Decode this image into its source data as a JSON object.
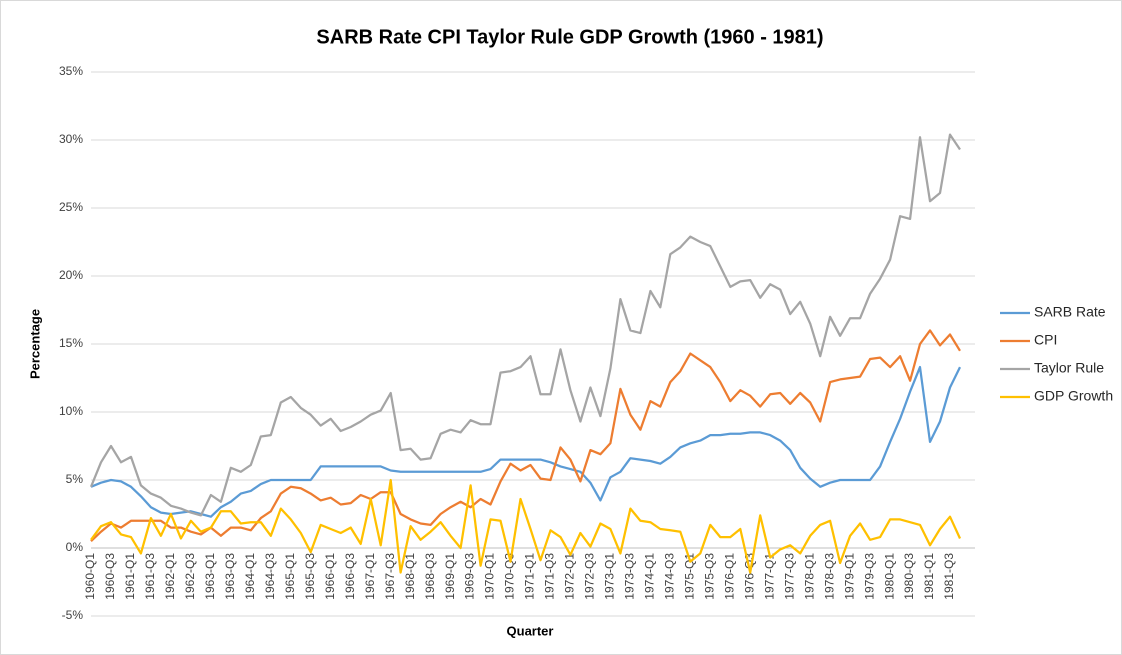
{
  "chart_data": {
    "type": "line",
    "title": "SARB Rate CPI Taylor Rule GDP Growth (1960 - 1981)",
    "x_label": "Quarter",
    "y_label": "Percentage",
    "categories": [
      "1960-Q1",
      null,
      "1960-Q3",
      null,
      "1961-Q1",
      null,
      "1961-Q3",
      null,
      "1962-Q1",
      null,
      "1962-Q3",
      null,
      "1963-Q1",
      null,
      "1963-Q3",
      null,
      "1964-Q1",
      null,
      "1964-Q3",
      null,
      "1965-Q1",
      null,
      "1965-Q3",
      null,
      "1966-Q1",
      null,
      "1966-Q3",
      null,
      "1967-Q1",
      null,
      "1967-Q3",
      null,
      "1968-Q1",
      null,
      "1968-Q3",
      null,
      "1969-Q1",
      null,
      "1969-Q3",
      null,
      "1970-Q1",
      null,
      "1970-Q3",
      null,
      "1971-Q1",
      null,
      "1971-Q3",
      null,
      "1972-Q1",
      null,
      "1972-Q3",
      null,
      "1973-Q1",
      null,
      "1973-Q3",
      null,
      "1974-Q1",
      null,
      "1974-Q3",
      null,
      "1975-Q1",
      null,
      "1975-Q3",
      null,
      "1976-Q1",
      null,
      "1976-Q3",
      null,
      "1977-Q1",
      null,
      "1977-Q3",
      null,
      "1978-Q1",
      null,
      "1978-Q3",
      null,
      "1979-Q1",
      null,
      "1979-Q3",
      null,
      "1980-Q1",
      null,
      "1980-Q3",
      null,
      "1981-Q1",
      null,
      "1981-Q3",
      null
    ],
    "series": [
      {
        "name": "SARB Rate",
        "color": "#5b9bd5",
        "values": [
          4.5,
          4.8,
          5.0,
          4.9,
          4.5,
          3.8,
          3.0,
          2.6,
          2.5,
          2.6,
          2.7,
          2.5,
          2.3,
          3.0,
          3.4,
          4.0,
          4.2,
          4.7,
          5.0,
          5.0,
          5.0,
          5.0,
          5.0,
          6.0,
          6.0,
          6.0,
          6.0,
          6.0,
          6.0,
          6.0,
          5.7,
          5.6,
          5.6,
          5.6,
          5.6,
          5.6,
          5.6,
          5.6,
          5.6,
          5.6,
          5.8,
          6.5,
          6.5,
          6.5,
          6.5,
          6.5,
          6.3,
          6.0,
          5.8,
          5.6,
          4.8,
          3.5,
          5.2,
          5.6,
          6.6,
          6.5,
          6.4,
          6.2,
          6.7,
          7.4,
          7.7,
          7.9,
          8.3,
          8.3,
          8.4,
          8.4,
          8.5,
          8.5,
          8.3,
          7.9,
          7.2,
          5.9,
          5.1,
          4.5,
          4.8,
          5.0,
          5.0,
          5.0,
          5.0,
          6.0,
          7.8,
          9.5,
          11.5,
          13.3,
          7.8,
          9.3,
          11.8,
          13.3
        ]
      },
      {
        "name": "CPI",
        "color": "#ed7d31",
        "values": [
          0.5,
          1.2,
          1.8,
          1.5,
          2.0,
          2.0,
          2.0,
          2.0,
          1.5,
          1.5,
          1.2,
          1.0,
          1.5,
          0.9,
          1.5,
          1.5,
          1.3,
          2.2,
          2.7,
          4.0,
          4.5,
          4.4,
          4.0,
          3.5,
          3.7,
          3.2,
          3.3,
          3.9,
          3.6,
          4.1,
          4.1,
          2.5,
          2.1,
          1.8,
          1.7,
          2.5,
          3.0,
          3.4,
          3.0,
          3.6,
          3.2,
          4.9,
          6.2,
          5.7,
          6.1,
          5.1,
          5.0,
          7.4,
          6.5,
          4.9,
          7.2,
          6.9,
          7.7,
          11.7,
          9.8,
          8.7,
          10.8,
          10.4,
          12.2,
          13.0,
          14.3,
          13.8,
          13.3,
          12.2,
          10.8,
          11.6,
          11.2,
          10.4,
          11.3,
          11.4,
          10.6,
          11.4,
          10.7,
          9.3,
          12.2,
          12.4,
          12.5,
          12.6,
          13.9,
          14.0,
          13.3,
          14.1,
          12.3,
          15.0,
          16.0,
          14.9,
          15.7,
          14.5
        ]
      },
      {
        "name": "Taylor Rule",
        "color": "#a5a5a5",
        "values": [
          4.5,
          6.3,
          7.5,
          6.3,
          6.7,
          4.6,
          4.0,
          3.7,
          3.1,
          2.9,
          2.6,
          2.4,
          3.9,
          3.4,
          5.9,
          5.6,
          6.1,
          8.2,
          8.3,
          10.7,
          11.1,
          10.3,
          9.8,
          9.0,
          9.5,
          8.6,
          8.9,
          9.3,
          9.8,
          10.1,
          11.4,
          7.2,
          7.3,
          6.5,
          6.6,
          8.4,
          8.7,
          8.5,
          9.4,
          9.1,
          9.1,
          12.9,
          13.0,
          13.3,
          14.1,
          11.3,
          11.3,
          14.6,
          11.6,
          9.3,
          11.8,
          9.7,
          13.2,
          18.3,
          16.0,
          15.8,
          18.9,
          17.7,
          21.6,
          22.1,
          22.9,
          22.5,
          22.2,
          20.7,
          19.2,
          19.6,
          19.7,
          18.4,
          19.4,
          19.0,
          17.2,
          18.1,
          16.5,
          14.1,
          17.0,
          15.6,
          16.9,
          16.9,
          18.7,
          19.8,
          21.2,
          24.4,
          24.2,
          30.2,
          25.5,
          26.1,
          30.4,
          29.3
        ]
      },
      {
        "name": "GDP Growth",
        "color": "#ffc000",
        "values": [
          0.6,
          1.6,
          1.9,
          1.0,
          0.8,
          -0.4,
          2.2,
          0.9,
          2.5,
          0.7,
          2.0,
          1.2,
          1.5,
          2.7,
          2.7,
          1.8,
          1.9,
          1.9,
          0.9,
          2.9,
          2.1,
          1.1,
          -0.3,
          1.7,
          1.4,
          1.1,
          1.5,
          0.3,
          3.6,
          0.2,
          5.0,
          -1.8,
          1.6,
          0.6,
          1.2,
          1.9,
          0.9,
          0.0,
          4.6,
          -1.3,
          2.1,
          2.0,
          -1.0,
          3.6,
          1.4,
          -0.9,
          1.3,
          0.8,
          -0.5,
          1.1,
          0.1,
          1.8,
          1.4,
          -0.4,
          2.9,
          2.0,
          1.9,
          1.4,
          1.3,
          1.2,
          -1.0,
          -0.4,
          1.7,
          0.8,
          0.8,
          1.4,
          -1.8,
          2.4,
          -0.7,
          -0.1,
          0.2,
          -0.4,
          0.9,
          1.7,
          2.0,
          -1.1,
          0.9,
          1.8,
          0.6,
          0.8,
          2.1,
          2.1,
          1.9,
          1.7,
          0.2,
          1.4,
          2.3,
          0.7
        ]
      }
    ],
    "ylim": [
      -5,
      35
    ],
    "yticks": [
      {
        "value": -5,
        "label": "-5%"
      },
      {
        "value": 0,
        "label": "0%"
      },
      {
        "value": 5,
        "label": "5%"
      },
      {
        "value": 10,
        "label": "10%"
      },
      {
        "value": 15,
        "label": "15%"
      },
      {
        "value": 20,
        "label": "20%"
      },
      {
        "value": 25,
        "label": "25%"
      },
      {
        "value": 30,
        "label": "30%"
      },
      {
        "value": 35,
        "label": "35%"
      }
    ],
    "grid": true,
    "legend": "right"
  }
}
